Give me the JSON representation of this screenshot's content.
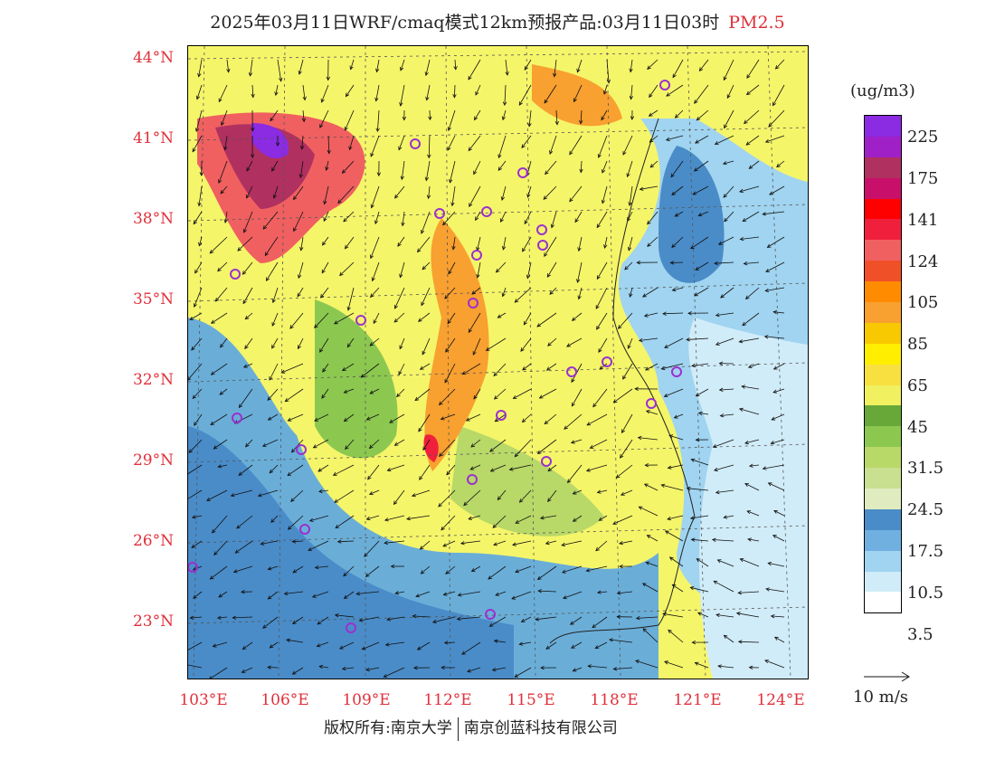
{
  "title": {
    "main": "2025年03月11日WRF/cmaq模式12km预报产品:03月11日03时",
    "pollutant": "PM2.5"
  },
  "axes": {
    "lat_labels": [
      "44°N",
      "41°N",
      "38°N",
      "35°N",
      "32°N",
      "29°N",
      "26°N",
      "23°N"
    ],
    "lon_labels": [
      "103°E",
      "106°E",
      "109°E",
      "112°E",
      "115°E",
      "118°E",
      "121°E",
      "124°E"
    ]
  },
  "legend": {
    "unit": "(ug/m3)",
    "colors": [
      "#8b2be2",
      "#a020c8",
      "#b03060",
      "#c8106a",
      "#ff0000",
      "#f0203c",
      "#f06060",
      "#f05028",
      "#ff8c00",
      "#f8a030",
      "#f8c800",
      "#ffee00",
      "#f8e040",
      "#f0f060",
      "#68a838",
      "#8cc850",
      "#b8d868",
      "#c8e090",
      "#e0ecc0",
      "#4a8cc8",
      "#70b0e0",
      "#a0d4f0",
      "#d0ecf8",
      "#ffffff"
    ],
    "labels": [
      "225",
      "175",
      "141",
      "124",
      "105",
      "85",
      "65",
      "45",
      "31.5",
      "24.5",
      "17.5",
      "10.5",
      "3.5"
    ]
  },
  "wind_scale": {
    "label": "10 m/s"
  },
  "stations_count": 24,
  "footer": {
    "left": "版权所有:南京大学",
    "right": "南京创蓝科技有限公司"
  },
  "colors": {
    "accent_red": "#e0303a",
    "station": "#9b30d0"
  }
}
